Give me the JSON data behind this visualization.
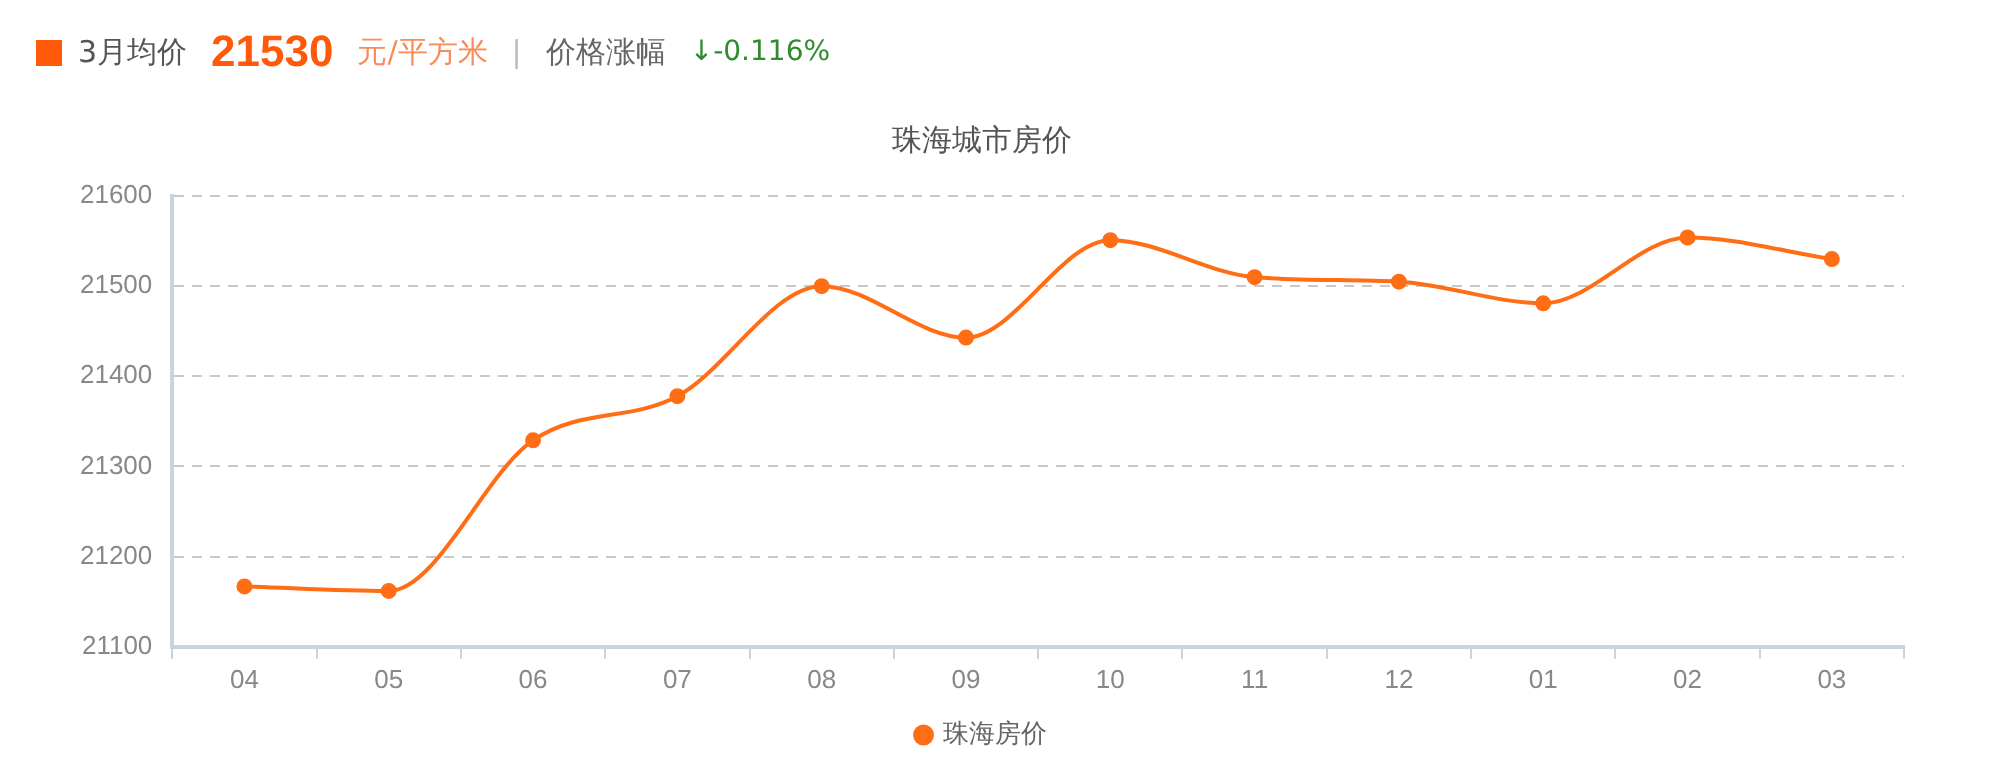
{
  "chart_data": {
    "type": "line",
    "title": "珠海城市房价",
    "annotations": [
      "3月均价",
      "21530",
      "元/平方米",
      "|",
      "价格涨幅",
      "↓-0.116%"
    ],
    "categories": [
      "04",
      "05",
      "06",
      "07",
      "08",
      "09",
      "10",
      "11",
      "12",
      "01",
      "02",
      "03"
    ],
    "series": [
      {
        "name": "珠海房价",
        "color": "#ff6d14",
        "values": [
          21167,
          21162,
          21329,
          21378,
          21500,
          21443,
          21551,
          21510,
          21505,
          21481,
          21554,
          21530
        ]
      }
    ],
    "ylim": [
      21100,
      21600
    ],
    "yticks": [
      21100,
      21200,
      21300,
      21400,
      21500,
      21600
    ],
    "grid": "y",
    "legend": "bottom",
    "marker": "circle",
    "line_style": "solid"
  }
}
